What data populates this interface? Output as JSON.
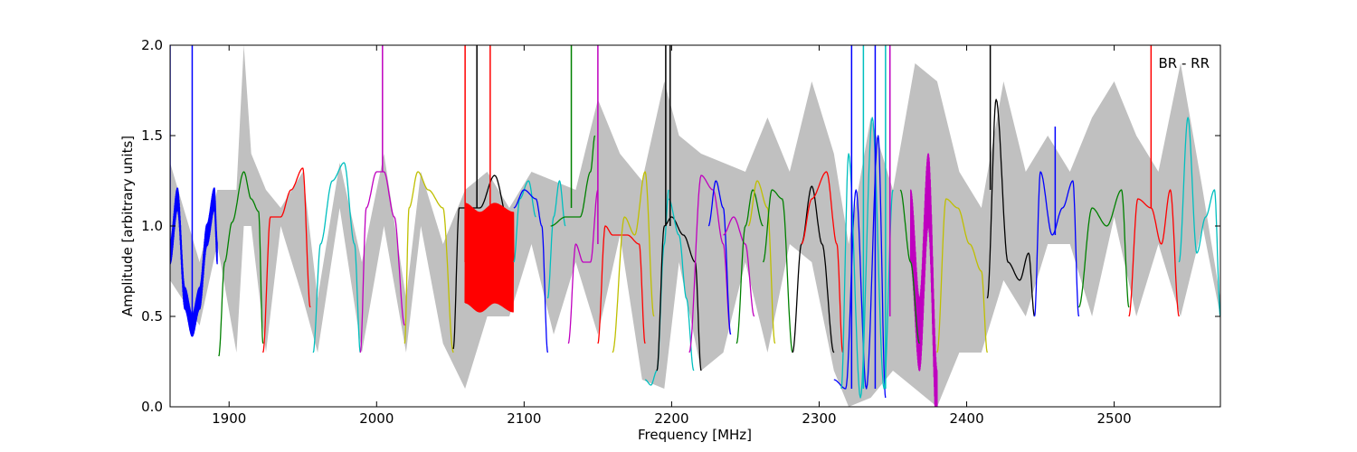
{
  "chart_data": {
    "type": "line",
    "title": "",
    "xlabel": "Frequency [MHz]",
    "ylabel": "Amplitude [arbitrary units]",
    "xlim": [
      1860,
      2572
    ],
    "ylim": [
      0.0,
      2.0
    ],
    "xticks": [
      1900,
      2000,
      2100,
      2200,
      2300,
      2400,
      2500
    ],
    "yticks": [
      0.0,
      0.5,
      1.0,
      1.5,
      2.0
    ],
    "xtick_labels": [
      "1900",
      "2000",
      "2100",
      "2200",
      "2300",
      "2400",
      "2500"
    ],
    "ytick_labels": [
      "0.0",
      "0.5",
      "1.0",
      "1.5",
      "2.0"
    ],
    "annotation": "BR - RR",
    "annotation_position": "top-right",
    "grid": false,
    "legend": "none",
    "envelope_color": "#c0c0c0",
    "envelope": {
      "x": [
        1860,
        1880,
        1892,
        1905,
        1910,
        1915,
        1925,
        1935,
        1950,
        1960,
        1975,
        1990,
        2005,
        2020,
        2030,
        2045,
        2060,
        2075,
        2090,
        2105,
        2120,
        2135,
        2150,
        2165,
        2180,
        2195,
        2205,
        2220,
        2235,
        2250,
        2265,
        2280,
        2295,
        2310,
        2320,
        2335,
        2350,
        2365,
        2380,
        2395,
        2410,
        2425,
        2440,
        2455,
        2470,
        2485,
        2500,
        2515,
        2530,
        2545,
        2560,
        2572
      ],
      "upper": [
        1.35,
        0.8,
        1.2,
        1.2,
        2.0,
        1.4,
        1.2,
        1.1,
        1.3,
        0.6,
        1.35,
        0.8,
        1.4,
        0.6,
        1.3,
        0.9,
        1.2,
        1.3,
        1.1,
        1.3,
        1.25,
        1.2,
        1.7,
        1.4,
        1.25,
        1.8,
        1.5,
        1.4,
        1.35,
        1.3,
        1.6,
        1.3,
        1.8,
        1.4,
        0.9,
        1.6,
        1.2,
        1.9,
        1.8,
        1.3,
        1.1,
        1.8,
        1.3,
        1.5,
        1.3,
        1.6,
        1.8,
        1.5,
        1.3,
        1.9,
        1.2,
        0.6
      ],
      "lower": [
        0.7,
        0.45,
        0.9,
        0.3,
        1.0,
        1.0,
        0.3,
        1.0,
        0.6,
        0.3,
        1.1,
        0.3,
        1.0,
        0.3,
        1.0,
        0.35,
        0.1,
        0.5,
        0.5,
        0.9,
        0.4,
        0.8,
        0.4,
        0.95,
        0.15,
        0.1,
        0.8,
        0.2,
        0.3,
        0.8,
        0.3,
        0.9,
        0.8,
        0.2,
        0.0,
        0.05,
        0.2,
        0.1,
        0.0,
        0.3,
        0.3,
        0.7,
        0.5,
        0.9,
        0.9,
        0.5,
        1.05,
        0.5,
        0.9,
        0.5,
        1.0,
        0.5
      ]
    },
    "series": [
      {
        "color": "#0000ff",
        "x": [
          1860,
          1865,
          1870,
          1875,
          1880,
          1885,
          1890,
          1892
        ],
        "y": [
          0.85,
          1.15,
          0.6,
          0.45,
          0.6,
          0.95,
          1.15,
          0.85
        ],
        "noise": 0.12
      },
      {
        "color": "#008000",
        "x": [
          1893,
          1897,
          1902,
          1910,
          1915,
          1920,
          1923
        ],
        "y": [
          0.28,
          0.8,
          1.02,
          1.3,
          1.15,
          1.08,
          0.35
        ]
      },
      {
        "color": "#ff0000",
        "x": [
          1923,
          1928,
          1935,
          1942,
          1950,
          1955
        ],
        "y": [
          0.3,
          1.05,
          1.05,
          1.2,
          1.32,
          0.55
        ]
      },
      {
        "color": "#00bfbf",
        "x": [
          1957,
          1962,
          1970,
          1978,
          1985,
          1989
        ],
        "y": [
          0.3,
          0.9,
          1.25,
          1.35,
          0.9,
          0.3
        ]
      },
      {
        "color": "#bf00bf",
        "x": [
          1989,
          1993,
          2000,
          2005,
          2012,
          2019
        ],
        "y": [
          0.3,
          1.1,
          1.3,
          1.3,
          1.05,
          0.45
        ]
      },
      {
        "color": "#bfbf00",
        "x": [
          2019,
          2022,
          2028,
          2035,
          2045,
          2052
        ],
        "y": [
          0.35,
          1.1,
          1.3,
          1.2,
          1.1,
          0.3
        ]
      },
      {
        "color": "#000000",
        "x": [
          2052,
          2056,
          2062,
          2070,
          2080,
          2090
        ],
        "y": [
          0.32,
          1.1,
          1.1,
          1.1,
          1.28,
          1.0
        ]
      },
      {
        "color": "#ff0000",
        "x": [
          2060,
          2070,
          2080,
          2093
        ],
        "y": [
          0.85,
          0.8,
          0.85,
          0.8
        ],
        "noise": 0.55
      },
      {
        "color": "#00bfbf",
        "x": [
          2093,
          2097,
          2103,
          2108
        ],
        "y": [
          0.8,
          1.15,
          1.25,
          1.05
        ]
      },
      {
        "color": "#0000ff",
        "x": [
          2093,
          2100,
          2108,
          2112,
          2116
        ],
        "y": [
          1.1,
          1.2,
          1.15,
          1.0,
          0.3
        ]
      },
      {
        "color": "#00bfbf",
        "x": [
          2116,
          2120,
          2124,
          2128
        ],
        "y": [
          0.6,
          1.05,
          1.25,
          1.0
        ]
      },
      {
        "color": "#008000",
        "x": [
          2118,
          2128,
          2138,
          2145,
          2148
        ],
        "y": [
          1.0,
          1.05,
          1.05,
          1.3,
          1.5
        ]
      },
      {
        "color": "#bf00bf",
        "x": [
          2130,
          2135,
          2140,
          2145,
          2150
        ],
        "y": [
          0.35,
          0.9,
          0.8,
          0.8,
          1.2
        ]
      },
      {
        "color": "#ff0000",
        "x": [
          2150,
          2155,
          2160,
          2170,
          2178,
          2182
        ],
        "y": [
          0.35,
          1.0,
          0.95,
          0.95,
          0.9,
          0.35
        ]
      },
      {
        "color": "#bfbf00",
        "x": [
          2160,
          2168,
          2175,
          2182,
          2188
        ],
        "y": [
          0.3,
          1.05,
          0.95,
          1.3,
          0.5
        ]
      },
      {
        "color": "#00bfbf",
        "x": [
          2182,
          2186,
          2190,
          2195,
          2198
        ],
        "y": [
          0.15,
          0.12,
          0.2,
          0.9,
          1.2
        ]
      },
      {
        "color": "#000000",
        "x": [
          2190,
          2195,
          2200,
          2208,
          2216,
          2220
        ],
        "y": [
          0.2,
          1.0,
          1.05,
          0.95,
          0.8,
          0.2
        ]
      },
      {
        "color": "#00bfbf",
        "x": [
          2198,
          2205,
          2210,
          2215
        ],
        "y": [
          1.15,
          0.95,
          0.6,
          0.2
        ]
      },
      {
        "color": "#bf00bf",
        "x": [
          2212,
          2220,
          2228,
          2235,
          2240
        ],
        "y": [
          0.3,
          1.28,
          1.2,
          0.9,
          0.4
        ]
      },
      {
        "color": "#0000ff",
        "x": [
          2225,
          2230,
          2235,
          2240
        ],
        "y": [
          1.0,
          1.25,
          1.1,
          0.4
        ]
      },
      {
        "color": "#bf00bf",
        "x": [
          2235,
          2242,
          2250,
          2256
        ],
        "y": [
          0.95,
          1.05,
          0.9,
          0.5
        ]
      },
      {
        "color": "#008000",
        "x": [
          2244,
          2250,
          2255,
          2262
        ],
        "y": [
          0.35,
          1.0,
          1.2,
          1.0
        ]
      },
      {
        "color": "#bfbf00",
        "x": [
          2252,
          2258,
          2265,
          2270
        ],
        "y": [
          1.0,
          1.25,
          1.1,
          0.35
        ]
      },
      {
        "color": "#008000",
        "x": [
          2262,
          2268,
          2275,
          2282
        ],
        "y": [
          0.8,
          1.2,
          1.15,
          0.3
        ]
      },
      {
        "color": "#000000",
        "x": [
          2282,
          2288,
          2295,
          2302,
          2310
        ],
        "y": [
          0.3,
          0.9,
          1.22,
          0.9,
          0.3
        ]
      },
      {
        "color": "#ff0000",
        "x": [
          2288,
          2295,
          2305,
          2312,
          2316
        ],
        "y": [
          0.9,
          1.15,
          1.3,
          0.9,
          0.3
        ]
      },
      {
        "color": "#0000ff",
        "x": [
          2310,
          2318,
          2325,
          2332,
          2340,
          2345
        ],
        "y": [
          0.15,
          0.1,
          1.2,
          0.1,
          1.5,
          0.05
        ]
      },
      {
        "color": "#00bfbf",
        "x": [
          2315,
          2320,
          2328,
          2336,
          2344,
          2350
        ],
        "y": [
          0.1,
          1.4,
          0.05,
          1.6,
          0.1,
          1.2
        ]
      },
      {
        "color": "#bf00bf",
        "x": [
          2362,
          2368,
          2374,
          2380
        ],
        "y": [
          1.0,
          0.4,
          1.2,
          0.0
        ],
        "noise": 0.4
      },
      {
        "color": "#008000",
        "x": [
          2355,
          2362,
          2368
        ],
        "y": [
          1.2,
          0.8,
          0.35
        ]
      },
      {
        "color": "#bfbf00",
        "x": [
          2380,
          2386,
          2394,
          2402,
          2410,
          2414
        ],
        "y": [
          0.3,
          1.15,
          1.1,
          0.9,
          0.75,
          0.3
        ]
      },
      {
        "color": "#000000",
        "x": [
          2414,
          2420,
          2428,
          2436,
          2442,
          2446
        ],
        "y": [
          0.6,
          1.7,
          0.8,
          0.7,
          0.85,
          0.5
        ]
      },
      {
        "color": "#0000ff",
        "x": [
          2446,
          2450,
          2458,
          2465,
          2472,
          2476
        ],
        "y": [
          0.5,
          1.3,
          0.95,
          1.1,
          1.25,
          0.5
        ]
      },
      {
        "color": "#008000",
        "x": [
          2476,
          2485,
          2495,
          2505,
          2510
        ],
        "y": [
          0.55,
          1.1,
          1.0,
          1.2,
          0.55
        ]
      },
      {
        "color": "#ff0000",
        "x": [
          2510,
          2516,
          2525,
          2532,
          2538,
          2544
        ],
        "y": [
          0.5,
          1.15,
          1.1,
          0.9,
          1.2,
          0.5
        ]
      },
      {
        "color": "#00bfbf",
        "x": [
          2544,
          2550,
          2556,
          2562,
          2568,
          2572
        ],
        "y": [
          0.8,
          1.6,
          0.85,
          1.05,
          1.2,
          0.5
        ]
      }
    ],
    "spikes": [
      {
        "color": "#0000ff",
        "x": 1860,
        "y0": 0.85,
        "y1": 2.0
      },
      {
        "color": "#0000ff",
        "x": 1875,
        "y0": 0.5,
        "y1": 2.0
      },
      {
        "color": "#bf00bf",
        "x": 2004,
        "y0": 1.3,
        "y1": 2.0
      },
      {
        "color": "#ff0000",
        "x": 2060,
        "y0": 0.8,
        "y1": 2.0
      },
      {
        "color": "#000000",
        "x": 2068,
        "y0": 1.1,
        "y1": 2.0
      },
      {
        "color": "#ff0000",
        "x": 2077,
        "y0": 0.9,
        "y1": 2.0
      },
      {
        "color": "#008000",
        "x": 2132,
        "y0": 1.1,
        "y1": 2.0
      },
      {
        "color": "#bf00bf",
        "x": 2150,
        "y0": 0.9,
        "y1": 2.0
      },
      {
        "color": "#000000",
        "x": 2196,
        "y0": 1.0,
        "y1": 2.0
      },
      {
        "color": "#000000",
        "x": 2199,
        "y0": 1.0,
        "y1": 2.0
      },
      {
        "color": "#0000ff",
        "x": 2322,
        "y0": 0.1,
        "y1": 2.0
      },
      {
        "color": "#00bfbf",
        "x": 2330,
        "y0": 0.1,
        "y1": 2.0
      },
      {
        "color": "#0000ff",
        "x": 2338,
        "y0": 0.1,
        "y1": 2.0
      },
      {
        "color": "#00bfbf",
        "x": 2345,
        "y0": 0.1,
        "y1": 2.0
      },
      {
        "color": "#bf00bf",
        "x": 2348,
        "y0": 0.5,
        "y1": 2.0
      },
      {
        "color": "#000000",
        "x": 2416,
        "y0": 1.2,
        "y1": 2.0
      },
      {
        "color": "#0000ff",
        "x": 2460,
        "y0": 0.95,
        "y1": 1.55
      },
      {
        "color": "#ff0000",
        "x": 2525,
        "y0": 1.1,
        "y1": 2.0
      }
    ]
  }
}
